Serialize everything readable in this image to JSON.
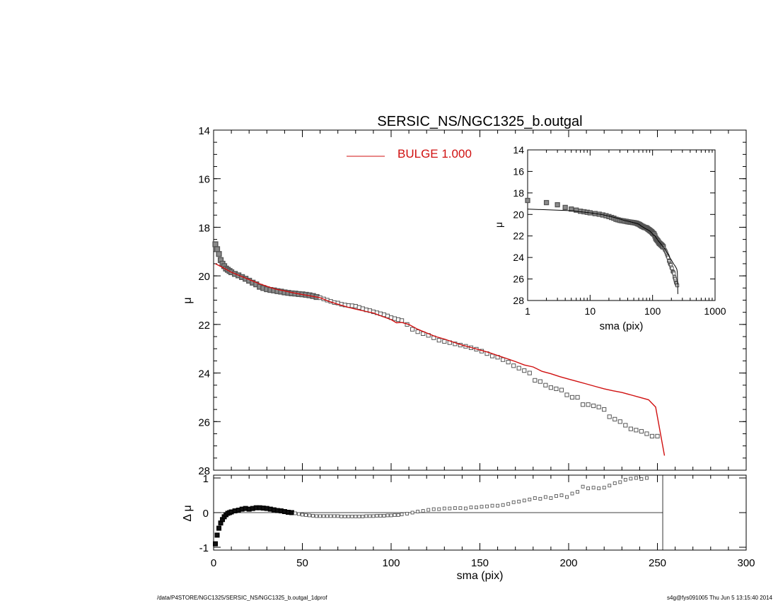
{
  "chart_data": [
    {
      "type": "scatter",
      "id": "main",
      "title": "SERSIC_NS/NGC1325_b.outgal",
      "xlabel": "",
      "ylabel": "μ",
      "xlim": [
        0,
        300
      ],
      "ylim": [
        14,
        28
      ],
      "y_inverted": true,
      "yticks": [
        14,
        16,
        18,
        20,
        22,
        24,
        26,
        28
      ],
      "legend": {
        "label": "BULGE 1.000",
        "color": "#d01010",
        "placement": "top-center"
      },
      "observed": {
        "x": [
          1,
          2,
          3,
          4,
          5,
          6,
          7,
          8,
          9,
          10,
          12,
          14,
          16,
          18,
          20,
          22,
          24,
          26,
          28,
          30,
          32,
          34,
          36,
          38,
          40,
          42,
          44,
          46,
          48,
          50,
          52,
          54,
          56,
          58,
          60,
          62,
          64,
          66,
          68,
          70,
          72,
          74,
          76,
          78,
          80,
          82,
          84,
          86,
          88,
          90,
          92,
          94,
          96,
          98,
          100,
          102,
          104,
          106,
          109,
          112,
          115,
          118,
          121,
          124,
          127,
          130,
          133,
          136,
          139,
          142,
          145,
          148,
          151,
          154,
          157,
          160,
          163,
          166,
          169,
          172,
          175,
          178,
          181,
          184,
          187,
          190,
          193,
          196,
          199,
          202,
          205,
          208,
          211,
          214,
          217,
          220,
          223,
          226,
          229,
          232,
          235,
          238,
          241,
          244,
          247,
          250
        ],
        "y": [
          18.7,
          18.9,
          19.1,
          19.35,
          19.5,
          19.6,
          19.7,
          19.75,
          19.8,
          19.85,
          19.92,
          19.98,
          20.05,
          20.12,
          20.2,
          20.28,
          20.35,
          20.45,
          20.5,
          20.55,
          20.58,
          20.6,
          20.63,
          20.65,
          20.68,
          20.7,
          20.72,
          20.73,
          20.75,
          20.76,
          20.78,
          20.8,
          20.83,
          20.87,
          20.9,
          20.95,
          21.0,
          21.05,
          21.1,
          21.12,
          21.17,
          21.2,
          21.22,
          21.23,
          21.25,
          21.3,
          21.35,
          21.4,
          21.43,
          21.48,
          21.52,
          21.56,
          21.6,
          21.65,
          21.72,
          21.76,
          21.8,
          21.84,
          22.0,
          22.2,
          22.3,
          22.38,
          22.45,
          22.55,
          22.65,
          22.7,
          22.75,
          22.8,
          22.85,
          22.9,
          22.96,
          23.02,
          23.1,
          23.2,
          23.3,
          23.35,
          23.45,
          23.55,
          23.7,
          23.8,
          23.9,
          24.0,
          24.3,
          24.35,
          24.5,
          24.6,
          24.65,
          24.7,
          24.9,
          25.0,
          25.0,
          25.3,
          25.3,
          25.35,
          25.4,
          25.5,
          25.8,
          25.9,
          26.0,
          26.15,
          26.3,
          26.35,
          26.4,
          26.5,
          26.6,
          26.6
        ]
      },
      "model": {
        "name": "BULGE 1.000",
        "color": "#d01010",
        "x": [
          1,
          5,
          10,
          15,
          20,
          25,
          30,
          35,
          40,
          45,
          50,
          55,
          60,
          65,
          70,
          75,
          80,
          85,
          90,
          95,
          100,
          103,
          106,
          110,
          115,
          120,
          125,
          130,
          135,
          140,
          145,
          150,
          155,
          160,
          165,
          170,
          175,
          180,
          185,
          190,
          195,
          200,
          205,
          210,
          215,
          220,
          225,
          230,
          235,
          240,
          245,
          249,
          254
        ],
        "y": [
          19.5,
          19.65,
          19.85,
          20.0,
          20.15,
          20.3,
          20.43,
          20.55,
          20.62,
          20.7,
          20.77,
          20.83,
          20.9,
          21.05,
          21.17,
          21.28,
          21.37,
          21.45,
          21.53,
          21.67,
          21.8,
          21.93,
          21.92,
          22.0,
          22.2,
          22.35,
          22.5,
          22.6,
          22.73,
          22.85,
          22.95,
          23.05,
          23.15,
          23.28,
          23.4,
          23.53,
          23.67,
          23.75,
          23.93,
          24.03,
          24.15,
          24.25,
          24.35,
          24.45,
          24.55,
          24.65,
          24.73,
          24.8,
          24.9,
          25.0,
          25.1,
          25.4,
          27.4
        ]
      }
    },
    {
      "type": "scatter",
      "id": "residual",
      "xlabel": "sma (pix)",
      "ylabel": "Δ μ",
      "xlim": [
        0,
        300
      ],
      "ylim": [
        -1,
        1
      ],
      "xticks": [
        0,
        50,
        100,
        150,
        200,
        250,
        300
      ],
      "yticks": [
        -1,
        0,
        1
      ],
      "x": [
        1,
        2,
        3,
        4,
        5,
        6,
        7,
        8,
        9,
        10,
        12,
        14,
        16,
        18,
        20,
        22,
        24,
        26,
        28,
        30,
        32,
        34,
        36,
        38,
        40,
        42,
        44,
        46,
        48,
        50,
        52,
        54,
        56,
        58,
        60,
        62,
        64,
        66,
        68,
        70,
        72,
        74,
        76,
        78,
        80,
        82,
        84,
        86,
        88,
        90,
        92,
        94,
        96,
        98,
        100,
        102,
        104,
        106,
        109,
        112,
        115,
        118,
        121,
        124,
        127,
        130,
        133,
        136,
        139,
        142,
        145,
        148,
        151,
        154,
        157,
        160,
        163,
        166,
        169,
        172,
        175,
        178,
        181,
        184,
        187,
        190,
        193,
        196,
        199,
        202,
        205,
        208,
        211,
        214,
        217,
        220,
        223,
        226,
        229,
        232,
        235,
        238,
        241,
        244
      ],
      "y": [
        -0.9,
        -0.65,
        -0.45,
        -0.3,
        -0.2,
        -0.12,
        -0.06,
        -0.02,
        0.0,
        0.02,
        0.05,
        0.07,
        0.1,
        0.12,
        0.1,
        0.12,
        0.14,
        0.14,
        0.13,
        0.12,
        0.1,
        0.08,
        0.06,
        0.05,
        0.03,
        0.01,
        0.0,
        -0.02,
        -0.04,
        -0.06,
        -0.07,
        -0.08,
        -0.09,
        -0.1,
        -0.1,
        -0.1,
        -0.1,
        -0.1,
        -0.1,
        -0.1,
        -0.11,
        -0.11,
        -0.11,
        -0.11,
        -0.11,
        -0.11,
        -0.11,
        -0.1,
        -0.1,
        -0.1,
        -0.09,
        -0.09,
        -0.09,
        -0.08,
        -0.08,
        -0.07,
        -0.07,
        -0.05,
        -0.03,
        0.0,
        0.03,
        0.05,
        0.08,
        0.1,
        0.1,
        0.12,
        0.12,
        0.13,
        0.13,
        0.12,
        0.15,
        0.15,
        0.17,
        0.18,
        0.2,
        0.2,
        0.22,
        0.25,
        0.3,
        0.32,
        0.35,
        0.38,
        0.42,
        0.4,
        0.45,
        0.42,
        0.48,
        0.5,
        0.45,
        0.55,
        0.6,
        0.75,
        0.7,
        0.72,
        0.7,
        0.72,
        0.78,
        0.85,
        0.88,
        0.95,
        0.98,
        1.0,
        0.97,
        1.0
      ],
      "vline_x": 253
    },
    {
      "type": "line",
      "id": "inset",
      "xlabel": "sma (pix)",
      "ylabel": "μ",
      "xscale": "log",
      "xlim": [
        1,
        1000
      ],
      "ylim": [
        14,
        28
      ],
      "y_inverted": true,
      "xticks": [
        1,
        10,
        100,
        1000
      ],
      "yticks": [
        14,
        16,
        18,
        20,
        22,
        24,
        26,
        28
      ]
    }
  ],
  "footer": {
    "left": "/data/P4STORE/NGC1325/SERSIC_NS/NGC1325_b.outgal_1dprof",
    "right": "s4g@fys091005  Thu Jun  5 13:15:40 2014"
  }
}
